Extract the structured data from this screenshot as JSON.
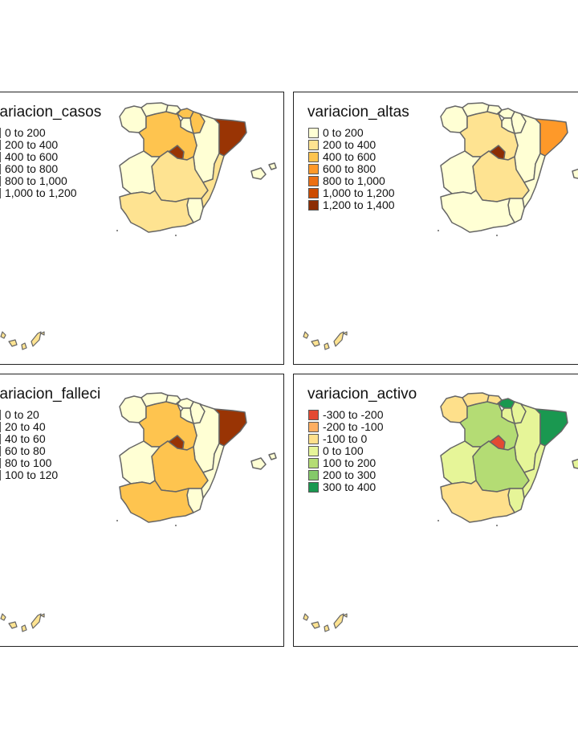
{
  "colors": {
    "outline": "#666666",
    "islands": "#fee391"
  },
  "maps": [
    {
      "id": "casos",
      "title": "variacion_casos",
      "legend": [
        {
          "label": "0 to 200",
          "color": "#ffffd4"
        },
        {
          "label": "200 to 400",
          "color": "#fee391"
        },
        {
          "label": "400 to 600",
          "color": "#fec44f"
        },
        {
          "label": "600 to 800",
          "color": "#fe9929"
        },
        {
          "label": "800 to 1,000",
          "color": "#d95f0e"
        },
        {
          "label": "1,000 to 1,200",
          "color": "#993404"
        }
      ],
      "fills": {
        "galicia": "#ffffd4",
        "asturias": "#ffffd4",
        "cantabria": "#ffffd4",
        "pais_vasco": "#fec44f",
        "navarra": "#fec44f",
        "rioja": "#ffffd4",
        "aragon": "#ffffd4",
        "cataluna": "#993404",
        "castilla_leon": "#fec44f",
        "madrid": "#993404",
        "castilla_mancha": "#fee391",
        "extremadura": "#ffffd4",
        "valencia": "#fee391",
        "murcia": "#ffffd4",
        "andalucia": "#fee391",
        "baleares": "#ffffd4"
      }
    },
    {
      "id": "altas",
      "title": "variacion_altas",
      "legend": [
        {
          "label": "0 to 200",
          "color": "#ffffd4"
        },
        {
          "label": "200 to 400",
          "color": "#fee391"
        },
        {
          "label": "400 to 600",
          "color": "#fec44f"
        },
        {
          "label": "600 to 800",
          "color": "#fe9929"
        },
        {
          "label": "800 to 1,000",
          "color": "#ec7014"
        },
        {
          "label": "1,000 to 1,200",
          "color": "#cc4c02"
        },
        {
          "label": "1,200 to 1,400",
          "color": "#8c2d04"
        }
      ],
      "fills": {
        "galicia": "#ffffd4",
        "asturias": "#ffffd4",
        "cantabria": "#ffffd4",
        "pais_vasco": "#ffffd4",
        "navarra": "#ffffd4",
        "rioja": "#ffffd4",
        "aragon": "#ffffd4",
        "cataluna": "#fe9929",
        "castilla_leon": "#fee391",
        "madrid": "#8c2d04",
        "castilla_mancha": "#fee391",
        "extremadura": "#ffffd4",
        "valencia": "#ffffd4",
        "murcia": "#ffffd4",
        "andalucia": "#ffffd4",
        "baleares": "#ffffd4"
      }
    },
    {
      "id": "falleci",
      "title": "variacion_falleci",
      "legend": [
        {
          "label": "0 to 20",
          "color": "#ffffd4"
        },
        {
          "label": "20 to 40",
          "color": "#fee391"
        },
        {
          "label": "40 to 60",
          "color": "#fec44f"
        },
        {
          "label": "60 to 80",
          "color": "#fe9929"
        },
        {
          "label": "80 to 100",
          "color": "#d95f0e"
        },
        {
          "label": "100 to 120",
          "color": "#993404"
        }
      ],
      "fills": {
        "galicia": "#ffffd4",
        "asturias": "#ffffd4",
        "cantabria": "#ffffd4",
        "pais_vasco": "#ffffd4",
        "navarra": "#ffffd4",
        "rioja": "#ffffd4",
        "aragon": "#ffffd4",
        "cataluna": "#993404",
        "castilla_leon": "#fec44f",
        "madrid": "#993404",
        "castilla_mancha": "#fec44f",
        "extremadura": "#ffffd4",
        "valencia": "#ffffd4",
        "murcia": "#ffffd4",
        "andalucia": "#fec44f",
        "baleares": "#ffffd4"
      }
    },
    {
      "id": "activo",
      "title": "variacion_activo",
      "legend": [
        {
          "label": "-300 to -200",
          "color": "#e34a33"
        },
        {
          "label": "-200 to -100",
          "color": "#fdae61"
        },
        {
          "label": "-100 to 0",
          "color": "#fee08b"
        },
        {
          "label": "0 to 100",
          "color": "#e6f598"
        },
        {
          "label": "100 to 200",
          "color": "#b4dc74"
        },
        {
          "label": "200 to 300",
          "color": "#84c96a"
        },
        {
          "label": "300 to 400",
          "color": "#1a9850"
        }
      ],
      "fills": {
        "galicia": "#fee08b",
        "asturias": "#fee08b",
        "cantabria": "#fee08b",
        "pais_vasco": "#1a9850",
        "navarra": "#e6f598",
        "rioja": "#e6f598",
        "aragon": "#e6f598",
        "cataluna": "#1a9850",
        "castilla_leon": "#b4dc74",
        "madrid": "#e34a33",
        "castilla_mancha": "#b4dc74",
        "extremadura": "#e6f598",
        "valencia": "#e6f598",
        "murcia": "#e6f598",
        "andalucia": "#fee08b",
        "baleares": "#e6f598"
      }
    }
  ]
}
